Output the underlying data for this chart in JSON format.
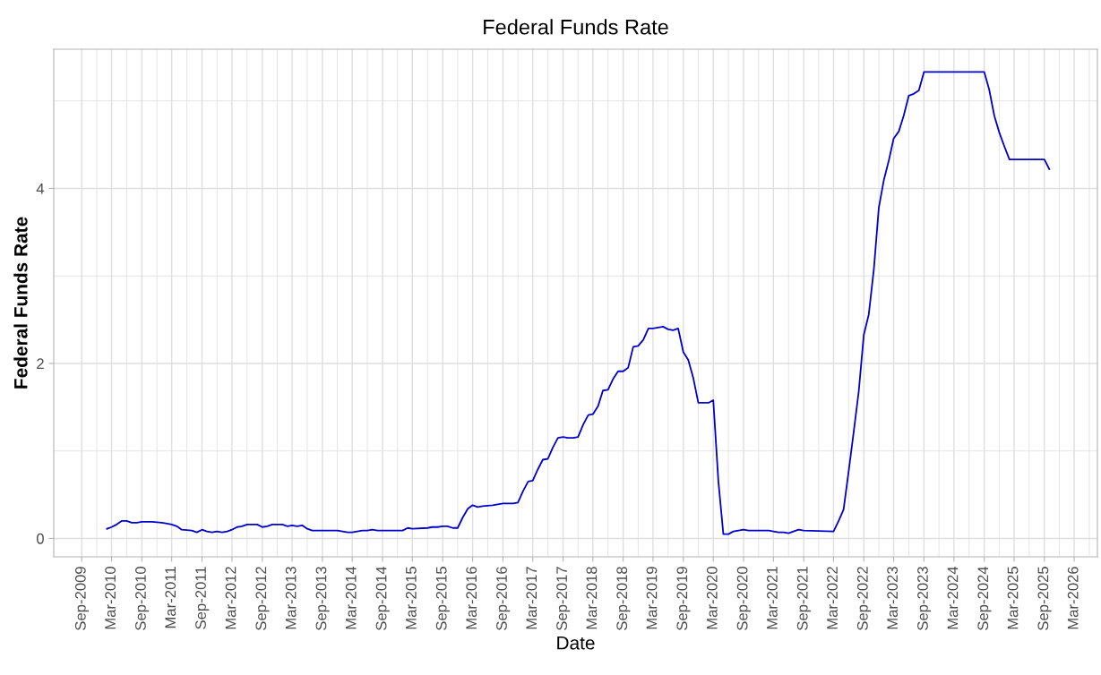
{
  "chart_data": {
    "type": "line",
    "title": "Federal Funds Rate",
    "xlabel": "Date",
    "ylabel": "Federal Funds Rate",
    "x": [
      "2010-02",
      "2010-03",
      "2010-04",
      "2010-05",
      "2010-06",
      "2010-07",
      "2010-08",
      "2010-09",
      "2010-11",
      "2011-01",
      "2011-02",
      "2011-03",
      "2011-04",
      "2011-05",
      "2011-07",
      "2011-08",
      "2011-09",
      "2011-10",
      "2011-11",
      "2011-12",
      "2012-01",
      "2012-02",
      "2012-03",
      "2012-04",
      "2012-05",
      "2012-06",
      "2012-08",
      "2012-09",
      "2012-10",
      "2012-11",
      "2013-01",
      "2013-02",
      "2013-03",
      "2013-04",
      "2013-05",
      "2013-06",
      "2013-07",
      "2013-12",
      "2014-01",
      "2014-02",
      "2014-03",
      "2014-04",
      "2014-05",
      "2014-06",
      "2014-07",
      "2014-08",
      "2015-01",
      "2015-02",
      "2015-03",
      "2015-06",
      "2015-07",
      "2015-08",
      "2015-09",
      "2015-10",
      "2015-11",
      "2015-12",
      "2016-01",
      "2016-02",
      "2016-03",
      "2016-04",
      "2016-05",
      "2016-07",
      "2016-08",
      "2016-09",
      "2016-11",
      "2016-12",
      "2017-01",
      "2017-02",
      "2017-03",
      "2017-04",
      "2017-05",
      "2017-06",
      "2017-07",
      "2017-08",
      "2017-09",
      "2017-10",
      "2017-11",
      "2017-12",
      "2018-01",
      "2018-02",
      "2018-03",
      "2018-04",
      "2018-05",
      "2018-06",
      "2018-07",
      "2018-08",
      "2018-09",
      "2018-10",
      "2018-11",
      "2018-12",
      "2019-01",
      "2019-02",
      "2019-03",
      "2019-04",
      "2019-05",
      "2019-06",
      "2019-07",
      "2019-08",
      "2019-09",
      "2019-10",
      "2019-11",
      "2019-12",
      "2020-01",
      "2020-02",
      "2020-03",
      "2020-04",
      "2020-05",
      "2020-06",
      "2020-07",
      "2020-08",
      "2020-09",
      "2020-10",
      "2021-02",
      "2021-03",
      "2021-04",
      "2021-05",
      "2021-06",
      "2021-07",
      "2021-08",
      "2021-09",
      "2022-03",
      "2022-04",
      "2022-05",
      "2022-06",
      "2022-07",
      "2022-08",
      "2022-09",
      "2022-10",
      "2022-11",
      "2022-12",
      "2023-01",
      "2023-02",
      "2023-03",
      "2023-04",
      "2023-05",
      "2023-06",
      "2023-07",
      "2023-08",
      "2023-09",
      "2024-09",
      "2024-10",
      "2024-11",
      "2024-12",
      "2025-01",
      "2025-02",
      "2025-09",
      "2025-10"
    ],
    "series": [
      {
        "color": "#0000cd",
        "values": [
          0.11,
          0.13,
          0.16,
          0.2,
          0.2,
          0.18,
          0.18,
          0.19,
          0.19,
          0.18,
          0.17,
          0.16,
          0.14,
          0.1,
          0.09,
          0.07,
          0.1,
          0.08,
          0.07,
          0.08,
          0.07,
          0.08,
          0.1,
          0.13,
          0.14,
          0.16,
          0.16,
          0.13,
          0.14,
          0.16,
          0.16,
          0.14,
          0.15,
          0.14,
          0.15,
          0.11,
          0.09,
          0.09,
          0.08,
          0.07,
          0.07,
          0.08,
          0.09,
          0.09,
          0.1,
          0.09,
          0.09,
          0.12,
          0.11,
          0.12,
          0.13,
          0.13,
          0.14,
          0.14,
          0.12,
          0.12,
          0.24,
          0.34,
          0.38,
          0.36,
          0.37,
          0.38,
          0.39,
          0.4,
          0.4,
          0.41,
          0.54,
          0.65,
          0.66,
          0.79,
          0.9,
          0.91,
          1.04,
          1.15,
          1.16,
          1.15,
          1.15,
          1.16,
          1.3,
          1.41,
          1.42,
          1.51,
          1.69,
          1.7,
          1.82,
          1.91,
          1.91,
          1.95,
          2.19,
          2.2,
          2.27,
          2.4,
          2.4,
          2.41,
          2.42,
          2.39,
          2.38,
          2.4,
          2.13,
          2.04,
          1.83,
          1.55,
          1.55,
          1.55,
          1.58,
          0.65,
          0.05,
          0.05,
          0.08,
          0.09,
          0.1,
          0.09,
          0.09,
          0.08,
          0.07,
          0.07,
          0.06,
          0.08,
          0.1,
          0.09,
          0.08,
          0.2,
          0.33,
          0.77,
          1.21,
          1.68,
          2.33,
          2.56,
          3.08,
          3.78,
          4.1,
          4.33,
          4.57,
          4.65,
          4.83,
          5.06,
          5.08,
          5.12,
          5.33,
          5.33,
          5.13,
          4.83,
          4.64,
          4.48,
          4.33,
          4.33,
          4.22
        ]
      }
    ],
    "xlim": [
      "2009-03-15",
      "2026-07-20"
    ],
    "xticks": [
      {
        "value": "2009-09-01",
        "label": "Sep-2009"
      },
      {
        "value": "2009-12-01",
        "label": null
      },
      {
        "value": "2010-03-01",
        "label": "Mar-2010"
      },
      {
        "value": "2010-06-01",
        "label": null
      },
      {
        "value": "2010-09-01",
        "label": "Sep-2010"
      },
      {
        "value": "2010-12-01",
        "label": null
      },
      {
        "value": "2011-03-01",
        "label": "Mar-2011"
      },
      {
        "value": "2011-06-01",
        "label": null
      },
      {
        "value": "2011-09-01",
        "label": "Sep-2011"
      },
      {
        "value": "2011-12-01",
        "label": null
      },
      {
        "value": "2012-03-01",
        "label": "Mar-2012"
      },
      {
        "value": "2012-06-01",
        "label": null
      },
      {
        "value": "2012-09-01",
        "label": "Sep-2012"
      },
      {
        "value": "2012-12-01",
        "label": null
      },
      {
        "value": "2013-03-01",
        "label": "Mar-2013"
      },
      {
        "value": "2013-06-01",
        "label": null
      },
      {
        "value": "2013-09-01",
        "label": "Sep-2013"
      },
      {
        "value": "2013-12-01",
        "label": null
      },
      {
        "value": "2014-03-01",
        "label": "Mar-2014"
      },
      {
        "value": "2014-06-01",
        "label": null
      },
      {
        "value": "2014-09-01",
        "label": "Sep-2014"
      },
      {
        "value": "2014-12-01",
        "label": null
      },
      {
        "value": "2015-03-01",
        "label": "Mar-2015"
      },
      {
        "value": "2015-06-01",
        "label": null
      },
      {
        "value": "2015-09-01",
        "label": "Sep-2015"
      },
      {
        "value": "2015-12-01",
        "label": null
      },
      {
        "value": "2016-03-01",
        "label": "Mar-2016"
      },
      {
        "value": "2016-06-01",
        "label": null
      },
      {
        "value": "2016-09-01",
        "label": "Sep-2016"
      },
      {
        "value": "2016-12-01",
        "label": null
      },
      {
        "value": "2017-03-01",
        "label": "Mar-2017"
      },
      {
        "value": "2017-06-01",
        "label": null
      },
      {
        "value": "2017-09-01",
        "label": "Sep-2017"
      },
      {
        "value": "2017-12-01",
        "label": null
      },
      {
        "value": "2018-03-01",
        "label": "Mar-2018"
      },
      {
        "value": "2018-06-01",
        "label": null
      },
      {
        "value": "2018-09-01",
        "label": "Sep-2018"
      },
      {
        "value": "2018-12-01",
        "label": null
      },
      {
        "value": "2019-03-01",
        "label": "Mar-2019"
      },
      {
        "value": "2019-06-01",
        "label": null
      },
      {
        "value": "2019-09-01",
        "label": "Sep-2019"
      },
      {
        "value": "2019-12-01",
        "label": null
      },
      {
        "value": "2020-03-01",
        "label": "Mar-2020"
      },
      {
        "value": "2020-06-01",
        "label": null
      },
      {
        "value": "2020-09-01",
        "label": "Sep-2020"
      },
      {
        "value": "2020-12-01",
        "label": null
      },
      {
        "value": "2021-03-01",
        "label": "Mar-2021"
      },
      {
        "value": "2021-06-01",
        "label": null
      },
      {
        "value": "2021-09-01",
        "label": "Sep-2021"
      },
      {
        "value": "2021-12-01",
        "label": null
      },
      {
        "value": "2022-03-01",
        "label": "Mar-2022"
      },
      {
        "value": "2022-06-01",
        "label": null
      },
      {
        "value": "2022-09-01",
        "label": "Sep-2022"
      },
      {
        "value": "2022-12-01",
        "label": null
      },
      {
        "value": "2023-03-01",
        "label": "Mar-2023"
      },
      {
        "value": "2023-06-01",
        "label": null
      },
      {
        "value": "2023-09-01",
        "label": "Sep-2023"
      },
      {
        "value": "2023-12-01",
        "label": null
      },
      {
        "value": "2024-03-01",
        "label": "Mar-2024"
      },
      {
        "value": "2024-06-01",
        "label": null
      },
      {
        "value": "2024-09-01",
        "label": "Sep-2024"
      },
      {
        "value": "2024-12-01",
        "label": null
      },
      {
        "value": "2025-03-01",
        "label": "Mar-2025"
      },
      {
        "value": "2025-06-01",
        "label": null
      },
      {
        "value": "2025-09-01",
        "label": "Sep-2025"
      },
      {
        "value": "2025-12-01",
        "label": null
      },
      {
        "value": "2026-03-01",
        "label": "Mar-2026"
      },
      {
        "value": "2026-06-01",
        "label": null
      }
    ],
    "ylim": [
      -0.21,
      5.59
    ],
    "yticks": [
      0,
      {
        "value": 1,
        "label": null
      },
      2,
      {
        "value": 3,
        "label": null
      },
      4,
      {
        "value": 5,
        "label": null
      }
    ],
    "grid": true,
    "marker": "none",
    "line_style": "solid"
  }
}
